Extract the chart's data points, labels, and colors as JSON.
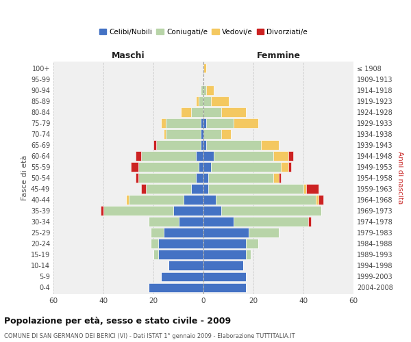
{
  "age_groups": [
    "0-4",
    "5-9",
    "10-14",
    "15-19",
    "20-24",
    "25-29",
    "30-34",
    "35-39",
    "40-44",
    "45-49",
    "50-54",
    "55-59",
    "60-64",
    "65-69",
    "70-74",
    "75-79",
    "80-84",
    "85-89",
    "90-94",
    "95-99",
    "100+"
  ],
  "birth_years": [
    "2004-2008",
    "1999-2003",
    "1994-1998",
    "1989-1993",
    "1984-1988",
    "1979-1983",
    "1974-1978",
    "1969-1973",
    "1964-1968",
    "1959-1963",
    "1954-1958",
    "1949-1953",
    "1944-1948",
    "1939-1943",
    "1934-1938",
    "1929-1933",
    "1924-1928",
    "1919-1923",
    "1914-1918",
    "1909-1913",
    "≤ 1908"
  ],
  "colors": {
    "celibi": "#4472C4",
    "coniugati": "#B8D4A8",
    "vedovi": "#F4C860",
    "divorziati": "#CC2222"
  },
  "maschi": {
    "celibi": [
      22,
      17,
      14,
      18,
      18,
      16,
      10,
      12,
      8,
      5,
      3,
      2,
      3,
      1,
      1,
      1,
      0,
      0,
      0,
      0,
      0
    ],
    "coniugati": [
      0,
      0,
      0,
      2,
      3,
      5,
      12,
      28,
      22,
      18,
      23,
      24,
      22,
      18,
      14,
      14,
      5,
      2,
      1,
      0,
      0
    ],
    "vedovi": [
      0,
      0,
      0,
      0,
      0,
      0,
      0,
      0,
      1,
      0,
      0,
      0,
      0,
      0,
      1,
      2,
      4,
      1,
      0,
      0,
      0
    ],
    "divorziati": [
      0,
      0,
      0,
      0,
      0,
      0,
      0,
      1,
      0,
      2,
      1,
      3,
      2,
      1,
      0,
      0,
      0,
      0,
      0,
      0,
      0
    ]
  },
  "femmine": {
    "celibi": [
      17,
      17,
      16,
      17,
      17,
      18,
      12,
      7,
      5,
      2,
      2,
      3,
      4,
      1,
      0,
      1,
      0,
      0,
      0,
      0,
      0
    ],
    "coniugati": [
      0,
      0,
      0,
      2,
      5,
      12,
      30,
      40,
      40,
      38,
      26,
      28,
      24,
      22,
      7,
      11,
      7,
      3,
      1,
      0,
      0
    ],
    "vedovi": [
      0,
      0,
      0,
      0,
      0,
      0,
      0,
      0,
      1,
      1,
      2,
      3,
      6,
      7,
      4,
      10,
      10,
      7,
      3,
      0,
      1
    ],
    "divorziati": [
      0,
      0,
      0,
      0,
      0,
      0,
      1,
      0,
      2,
      5,
      1,
      1,
      2,
      0,
      0,
      0,
      0,
      0,
      0,
      0,
      0
    ]
  },
  "xlim": 60,
  "title": "Popolazione per età, sesso e stato civile - 2009",
  "subtitle": "COMUNE DI SAN GERMANO DEI BERICI (VI) - Dati ISTAT 1° gennaio 2009 - Elaborazione TUTTITALIA.IT",
  "xlabel_left": "Maschi",
  "xlabel_right": "Femmine",
  "ylabel_left": "Fasce di età",
  "ylabel_right": "Anni di nascita",
  "legend_labels": [
    "Celibi/Nubili",
    "Coniugati/e",
    "Vedovi/e",
    "Divorziati/e"
  ],
  "bg_color": "#ffffff",
  "plot_bg": "#f0f0f0",
  "grid_color": "#cccccc",
  "bar_height": 0.85
}
